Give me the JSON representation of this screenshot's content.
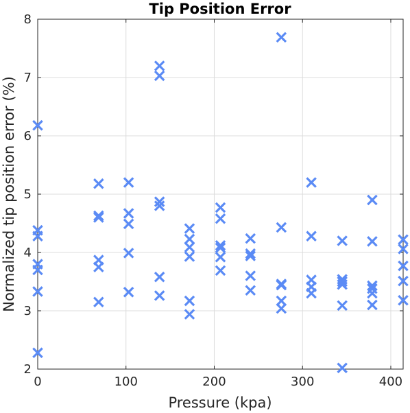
{
  "chart_data": {
    "type": "scatter",
    "title": "Tip Position Error",
    "xlabel": "Pressure (kpa)",
    "ylabel": "Normalized tip position error (%)",
    "xlim": [
      0,
      414
    ],
    "ylim": [
      2,
      8
    ],
    "xticks": [
      0,
      100,
      200,
      300,
      400
    ],
    "yticks": [
      2,
      3,
      4,
      5,
      6,
      7,
      8
    ],
    "grid": true,
    "marker": "x-filled",
    "color": "#5b8bf5",
    "points": [
      {
        "x": 0,
        "y": 6.18
      },
      {
        "x": 0,
        "y": 4.38
      },
      {
        "x": 0,
        "y": 4.28
      },
      {
        "x": 0,
        "y": 3.8
      },
      {
        "x": 0,
        "y": 3.7
      },
      {
        "x": 0,
        "y": 3.33
      },
      {
        "x": 0,
        "y": 2.28
      },
      {
        "x": 69,
        "y": 5.18
      },
      {
        "x": 69,
        "y": 4.63
      },
      {
        "x": 69,
        "y": 4.6
      },
      {
        "x": 69,
        "y": 3.87
      },
      {
        "x": 69,
        "y": 3.75
      },
      {
        "x": 69,
        "y": 3.15
      },
      {
        "x": 103,
        "y": 5.2
      },
      {
        "x": 103,
        "y": 4.67
      },
      {
        "x": 103,
        "y": 4.49
      },
      {
        "x": 103,
        "y": 3.99
      },
      {
        "x": 103,
        "y": 3.32
      },
      {
        "x": 138,
        "y": 7.2
      },
      {
        "x": 138,
        "y": 7.03
      },
      {
        "x": 138,
        "y": 4.87
      },
      {
        "x": 138,
        "y": 4.8
      },
      {
        "x": 138,
        "y": 3.58
      },
      {
        "x": 138,
        "y": 3.26
      },
      {
        "x": 172,
        "y": 4.41
      },
      {
        "x": 172,
        "y": 4.23
      },
      {
        "x": 172,
        "y": 4.09
      },
      {
        "x": 172,
        "y": 3.93
      },
      {
        "x": 172,
        "y": 3.17
      },
      {
        "x": 172,
        "y": 2.94
      },
      {
        "x": 207,
        "y": 4.77
      },
      {
        "x": 207,
        "y": 4.58
      },
      {
        "x": 207,
        "y": 4.12
      },
      {
        "x": 207,
        "y": 4.08
      },
      {
        "x": 207,
        "y": 3.92
      },
      {
        "x": 207,
        "y": 3.69
      },
      {
        "x": 241,
        "y": 4.24
      },
      {
        "x": 241,
        "y": 3.98
      },
      {
        "x": 241,
        "y": 3.94
      },
      {
        "x": 241,
        "y": 3.6
      },
      {
        "x": 241,
        "y": 3.35
      },
      {
        "x": 276,
        "y": 7.69
      },
      {
        "x": 276,
        "y": 4.43
      },
      {
        "x": 276,
        "y": 3.46
      },
      {
        "x": 276,
        "y": 3.44
      },
      {
        "x": 276,
        "y": 3.17
      },
      {
        "x": 276,
        "y": 3.04
      },
      {
        "x": 310,
        "y": 5.2
      },
      {
        "x": 310,
        "y": 4.28
      },
      {
        "x": 310,
        "y": 3.53
      },
      {
        "x": 310,
        "y": 3.41
      },
      {
        "x": 310,
        "y": 3.3
      },
      {
        "x": 345,
        "y": 4.2
      },
      {
        "x": 345,
        "y": 3.54
      },
      {
        "x": 345,
        "y": 3.5
      },
      {
        "x": 345,
        "y": 3.45
      },
      {
        "x": 345,
        "y": 3.09
      },
      {
        "x": 345,
        "y": 2.02
      },
      {
        "x": 379,
        "y": 4.9
      },
      {
        "x": 379,
        "y": 4.19
      },
      {
        "x": 379,
        "y": 3.43
      },
      {
        "x": 379,
        "y": 3.38
      },
      {
        "x": 379,
        "y": 3.3
      },
      {
        "x": 379,
        "y": 3.1
      },
      {
        "x": 414,
        "y": 4.22
      },
      {
        "x": 414,
        "y": 4.06
      },
      {
        "x": 414,
        "y": 3.77
      },
      {
        "x": 414,
        "y": 3.51
      },
      {
        "x": 414,
        "y": 3.18
      }
    ]
  }
}
